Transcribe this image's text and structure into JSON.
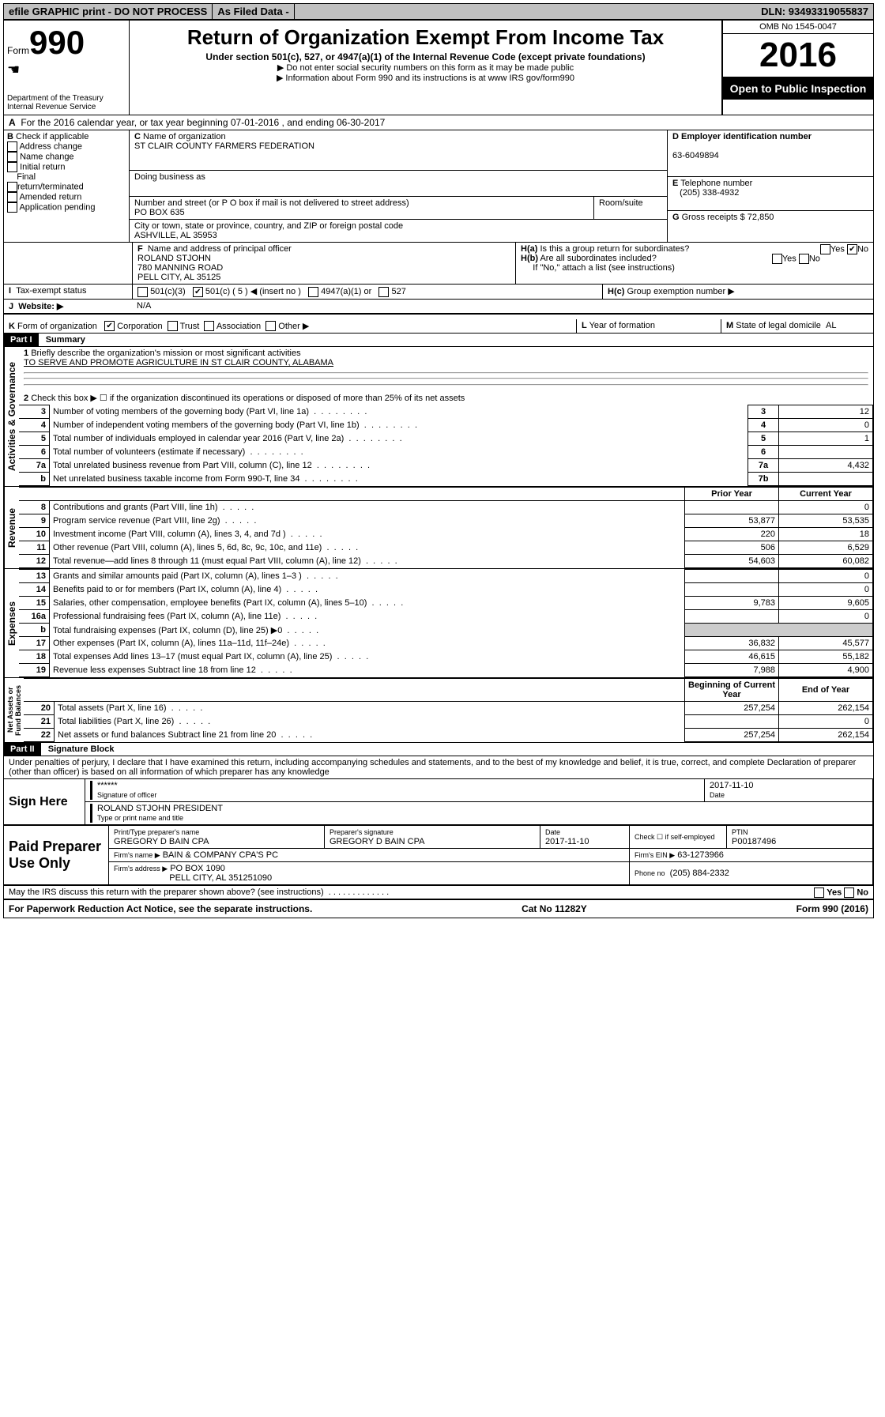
{
  "topbar": {
    "efile": "efile GRAPHIC print - DO NOT PROCESS",
    "asfiled": "As Filed Data -",
    "dln_label": "DLN:",
    "dln": "93493319055837"
  },
  "header": {
    "form_label": "Form",
    "form_no": "990",
    "dept1": "Department of the Treasury",
    "dept2": "Internal Revenue Service",
    "title": "Return of Organization Exempt From Income Tax",
    "sub": "Under section 501(c), 527, or 4947(a)(1) of the Internal Revenue Code (except private foundations)",
    "note1": "Do not enter social security numbers on this form as it may be made public",
    "note2": "Information about Form 990 and its instructions is at www IRS gov/form990",
    "omb": "OMB No  1545-0047",
    "year": "2016",
    "open": "Open to Public Inspection"
  },
  "A": {
    "text": "For the 2016 calendar year, or tax year beginning 07-01-2016   , and ending 06-30-2017"
  },
  "B": {
    "label": "Check if applicable",
    "opts": [
      "Address change",
      "Name change",
      "Initial return",
      "Final return/terminated",
      "Amended return",
      "Application pending"
    ]
  },
  "C": {
    "name_label": "Name of organization",
    "name": "ST CLAIR COUNTY FARMERS FEDERATION",
    "dba_label": "Doing business as",
    "dba": "",
    "street_label": "Number and street (or P O  box if mail is not delivered to street address)",
    "room_label": "Room/suite",
    "street": "PO BOX 635",
    "city_label": "City or town, state or province, country, and ZIP or foreign postal code",
    "city": "ASHVILLE, AL  35953"
  },
  "D": {
    "label": "Employer identification number",
    "val": "63-6049894"
  },
  "E": {
    "label": "Telephone number",
    "val": "(205) 338-4932"
  },
  "G": {
    "label": "Gross receipts $",
    "val": "72,850"
  },
  "F": {
    "label": "Name and address of principal officer",
    "name": "ROLAND STJOHN",
    "addr1": "780 MANNING ROAD",
    "addr2": "PELL CITY, AL  35125"
  },
  "H": {
    "a": "Is this a group return for subordinates?",
    "b": "Are all subordinates included?",
    "note": "If \"No,\" attach a list  (see instructions)",
    "c": "Group exemption number ▶"
  },
  "I": {
    "label": "Tax-exempt status",
    "c3": "501(c)(3)",
    "c5": "501(c) ( 5 ) ◀ (insert no )",
    "c4947": "4947(a)(1) or",
    "c527": "527"
  },
  "J": {
    "label": "Website: ▶",
    "val": "N/A"
  },
  "K": {
    "label": "Form of organization",
    "corp": "Corporation",
    "trust": "Trust",
    "assoc": "Association",
    "other": "Other ▶"
  },
  "L": {
    "label": "Year of formation",
    "val": ""
  },
  "M": {
    "label": "State of legal domicile",
    "val": "AL"
  },
  "partI": {
    "title": "Part I",
    "sub": "Summary",
    "q1_label": "Briefly describe the organization's mission or most significant activities",
    "q1": "TO SERVE AND PROMOTE AGRICULTURE IN ST CLAIR COUNTY, ALABAMA",
    "q2": "Check this box ▶ ☐ if the organization discontinued its operations or disposed of more than 25% of its net assets",
    "lines": [
      {
        "no": "3",
        "txt": "Number of voting members of the governing body (Part VI, line 1a)",
        "box": "3",
        "val": "12"
      },
      {
        "no": "4",
        "txt": "Number of independent voting members of the governing body (Part VI, line 1b)",
        "box": "4",
        "val": "0"
      },
      {
        "no": "5",
        "txt": "Total number of individuals employed in calendar year 2016 (Part V, line 2a)",
        "box": "5",
        "val": "1"
      },
      {
        "no": "6",
        "txt": "Total number of volunteers (estimate if necessary)",
        "box": "6",
        "val": ""
      },
      {
        "no": "7a",
        "txt": "Total unrelated business revenue from Part VIII, column (C), line 12",
        "box": "7a",
        "val": "4,432"
      },
      {
        "no": "b",
        "txt": "Net unrelated business taxable income from Form 990-T, line 34",
        "box": "7b",
        "val": ""
      }
    ],
    "cols": {
      "prior": "Prior Year",
      "curr": "Current Year"
    },
    "rev": [
      {
        "no": "8",
        "txt": "Contributions and grants (Part VIII, line 1h)",
        "p": "",
        "c": "0"
      },
      {
        "no": "9",
        "txt": "Program service revenue (Part VIII, line 2g)",
        "p": "53,877",
        "c": "53,535"
      },
      {
        "no": "10",
        "txt": "Investment income (Part VIII, column (A), lines 3, 4, and 7d )",
        "p": "220",
        "c": "18"
      },
      {
        "no": "11",
        "txt": "Other revenue (Part VIII, column (A), lines 5, 6d, 8c, 9c, 10c, and 11e)",
        "p": "506",
        "c": "6,529"
      },
      {
        "no": "12",
        "txt": "Total revenue—add lines 8 through 11 (must equal Part VIII, column (A), line 12)",
        "p": "54,603",
        "c": "60,082"
      }
    ],
    "exp": [
      {
        "no": "13",
        "txt": "Grants and similar amounts paid (Part IX, column (A), lines 1–3 )",
        "p": "",
        "c": "0"
      },
      {
        "no": "14",
        "txt": "Benefits paid to or for members (Part IX, column (A), line 4)",
        "p": "",
        "c": "0"
      },
      {
        "no": "15",
        "txt": "Salaries, other compensation, employee benefits (Part IX, column (A), lines 5–10)",
        "p": "9,783",
        "c": "9,605"
      },
      {
        "no": "16a",
        "txt": "Professional fundraising fees (Part IX, column (A), line 11e)",
        "p": "",
        "c": "0"
      },
      {
        "no": "b",
        "txt": "Total fundraising expenses (Part IX, column (D), line 25) ▶0",
        "p": "—",
        "c": "—"
      },
      {
        "no": "17",
        "txt": "Other expenses (Part IX, column (A), lines 11a–11d, 11f–24e)",
        "p": "36,832",
        "c": "45,577"
      },
      {
        "no": "18",
        "txt": "Total expenses  Add lines 13–17 (must equal Part IX, column (A), line 25)",
        "p": "46,615",
        "c": "55,182"
      },
      {
        "no": "19",
        "txt": "Revenue less expenses  Subtract line 18 from line 12",
        "p": "7,988",
        "c": "4,900"
      }
    ],
    "netcols": {
      "beg": "Beginning of Current Year",
      "end": "End of Year"
    },
    "net": [
      {
        "no": "20",
        "txt": "Total assets (Part X, line 16)",
        "p": "257,254",
        "c": "262,154"
      },
      {
        "no": "21",
        "txt": "Total liabilities (Part X, line 26)",
        "p": "",
        "c": "0"
      },
      {
        "no": "22",
        "txt": "Net assets or fund balances  Subtract line 21 from line 20",
        "p": "257,254",
        "c": "262,154"
      }
    ]
  },
  "partII": {
    "title": "Part II",
    "sub": "Signature Block",
    "decl": "Under penalties of perjury, I declare that I have examined this return, including accompanying schedules and statements, and to the best of my knowledge and belief, it is true, correct, and complete  Declaration of preparer (other than officer) is based on all information of which preparer has any knowledge",
    "sign_here": "Sign Here",
    "stars": "******",
    "sig_of": "Signature of officer",
    "date": "2017-11-10",
    "date_lbl": "Date",
    "name_title": "ROLAND STJOHN  PRESIDENT",
    "typeprint": "Type or print name and title",
    "paid": "Paid Preparer Use Only",
    "prep_name_lbl": "Print/Type preparer's name",
    "prep_name": "GREGORY D BAIN CPA",
    "prep_sig_lbl": "Preparer's signature",
    "prep_sig": "GREGORY D BAIN CPA",
    "prep_date_lbl": "Date",
    "prep_date": "2017-11-10",
    "self_emp": "Check ☐ if self-employed",
    "ptin_lbl": "PTIN",
    "ptin": "P00187496",
    "firm_name_lbl": "Firm's name   ▶",
    "firm_name": "BAIN & COMPANY CPA'S PC",
    "firm_ein_lbl": "Firm's EIN ▶",
    "firm_ein": "63-1273966",
    "firm_addr_lbl": "Firm's address ▶",
    "firm_addr": "PO BOX 1090",
    "firm_addr2": "PELL CITY, AL  351251090",
    "phone_lbl": "Phone no",
    "phone": "(205) 884-2332",
    "discuss": "May the IRS discuss this return with the preparer shown above? (see instructions)",
    "yes": "Yes",
    "no": "No"
  },
  "footer": {
    "left": "For Paperwork Reduction Act Notice, see the separate instructions.",
    "mid": "Cat  No  11282Y",
    "right": "Form 990 (2016)"
  }
}
